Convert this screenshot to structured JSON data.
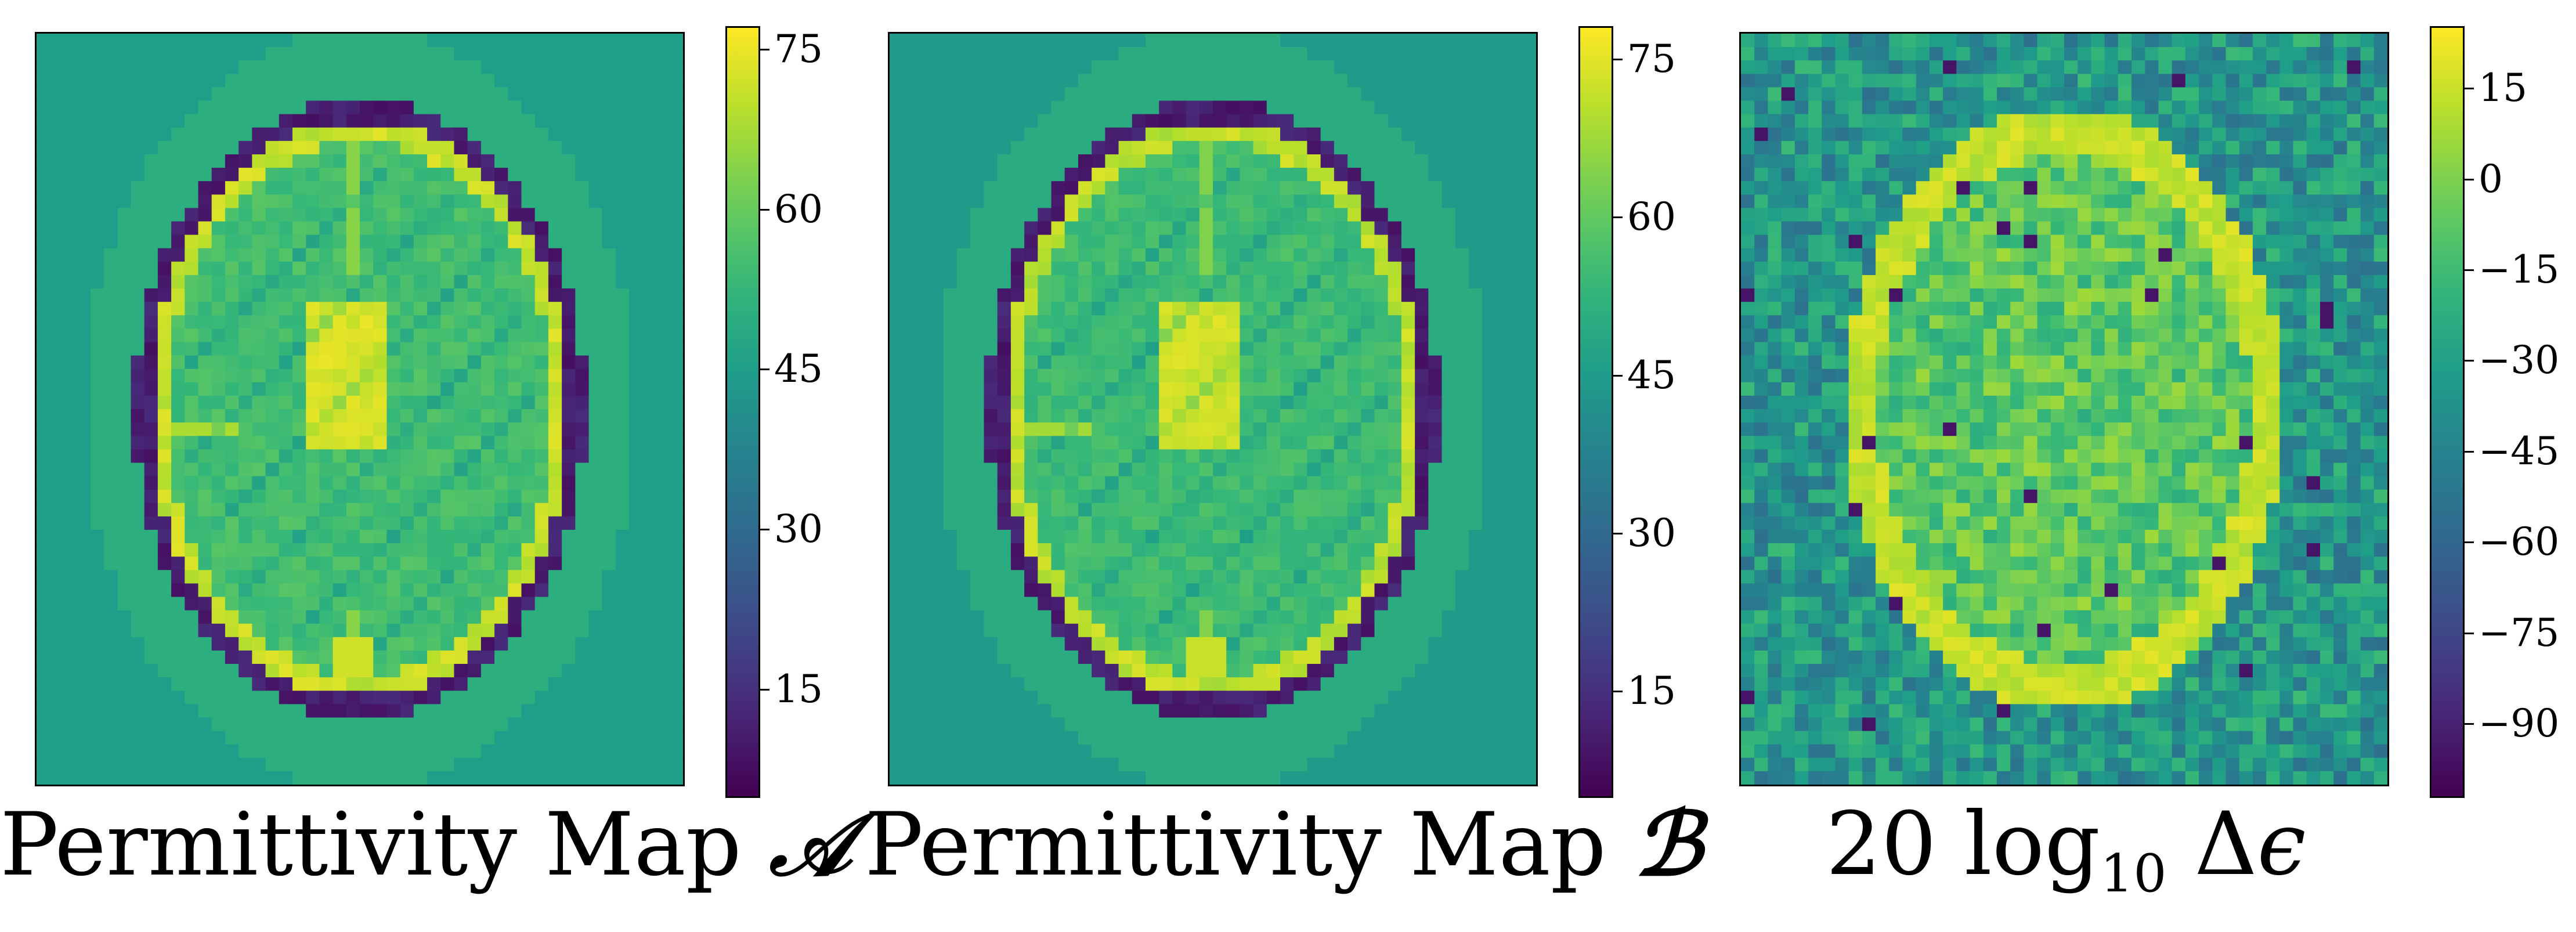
{
  "figure": {
    "panels": [
      {
        "title_text": "Permittivity Map ",
        "title_symbol": "𝒜",
        "colormap": "viridis",
        "colorbar": {
          "min": 5,
          "max": 77,
          "ticks": [
            "15",
            "30",
            "45",
            "60",
            "75"
          ],
          "tick_values": [
            15,
            30,
            45,
            60,
            75
          ]
        }
      },
      {
        "title_text": "Permittivity Map ",
        "title_symbol": "ℬ",
        "colormap": "viridis",
        "colorbar": {
          "min": 5,
          "max": 78,
          "ticks": [
            "15",
            "30",
            "45",
            "60",
            "75"
          ],
          "tick_values": [
            15,
            30,
            45,
            60,
            75
          ]
        }
      },
      {
        "title_prefix": "20 log",
        "title_sub": "10",
        "title_suffix": " Δ",
        "title_eps": "ϵ",
        "colormap": "viridis",
        "colorbar": {
          "min": -102,
          "max": 25,
          "ticks": [
            "15",
            "0",
            "−15",
            "−30",
            "−45",
            "−60",
            "−75",
            "−90"
          ],
          "tick_values": [
            15,
            0,
            -15,
            -30,
            -45,
            -60,
            -75,
            -90
          ]
        }
      }
    ]
  },
  "chart_data": [
    {
      "type": "heatmap",
      "title": "Permittivity Map 𝒜",
      "grid": [
        48,
        56
      ],
      "value_range": [
        5,
        77
      ],
      "description_of_values": {
        "background": 45,
        "outer_ring": 50,
        "skull_ring": 8,
        "inner_edge": 70,
        "brain_tissue": 55,
        "ventricles": 72
      },
      "colorbar_ticks": [
        15,
        30,
        45,
        60,
        75
      ]
    },
    {
      "type": "heatmap",
      "title": "Permittivity Map ℬ",
      "grid": [
        48,
        56
      ],
      "value_range": [
        5,
        78
      ],
      "description_of_values": {
        "background": 45,
        "outer_ring": 50,
        "skull_ring": 8,
        "inner_edge": 70,
        "brain_tissue": 55,
        "ventricles": 72
      },
      "colorbar_ticks": [
        15,
        30,
        45,
        60,
        75
      ]
    },
    {
      "type": "heatmap",
      "title": "20 log10 Δϵ",
      "grid": [
        48,
        56
      ],
      "value_range": [
        -102,
        25
      ],
      "description_of_values": {
        "background_mean": -35,
        "brain_mean": -5,
        "ring_peak": 15
      },
      "colorbar_ticks": [
        15,
        0,
        -15,
        -30,
        -45,
        -60,
        -75,
        -90
      ]
    }
  ]
}
